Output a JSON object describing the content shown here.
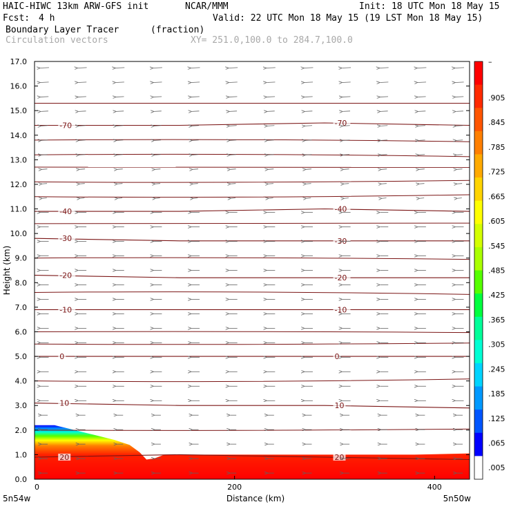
{
  "header": {
    "title": "HAIC-HIWC 13km ARW-GFS init",
    "org": "NCAR/MMM",
    "init": "Init: 18 UTC Mon 18 May 15",
    "fcst_label": "Fcst:",
    "fcst_value": "4 h",
    "valid": "Valid: 22 UTC Mon 18 May 15 (19 LST Mon 18 May 15)",
    "field_name": "Boundary Layer Tracer",
    "field_units": "(fraction)",
    "vector_label": "Circulation vectors",
    "xy_label": "XY= 251.0,100.0 to 284.7,100.0"
  },
  "chart_data": {
    "type": "heatmap",
    "title": "Boundary Layer Tracer (fraction)",
    "xlabel": "Distance (km)",
    "ylabel": "Height (km)",
    "xlim": [
      0,
      435
    ],
    "ylim": [
      0,
      17
    ],
    "x_ticks": [
      "0",
      "200",
      "400"
    ],
    "x_tick_values": [
      0,
      200,
      400
    ],
    "x_end_labels": [
      "5n54w",
      "5n50w"
    ],
    "y_ticks": [
      "0.0",
      "1.0",
      "2.0",
      "3.0",
      "4.0",
      "5.0",
      "6.0",
      "7.0",
      "8.0",
      "9.0",
      "10.0",
      "11.0",
      "12.0",
      "13.0",
      "14.0",
      "15.0",
      "16.0",
      "17.0"
    ],
    "y_tick_values": [
      0,
      1,
      2,
      3,
      4,
      5,
      6,
      7,
      8,
      9,
      10,
      11,
      12,
      13,
      14,
      15,
      16,
      17
    ],
    "colorbar": {
      "labels": [
        "–",
        ".905",
        ".845",
        ".785",
        ".725",
        ".665",
        ".605",
        ".545",
        ".485",
        ".425",
        ".365",
        ".305",
        ".245",
        ".185",
        ".125",
        ".065",
        ".005"
      ],
      "colors": [
        "#ff0000",
        "#ff2a00",
        "#ff5500",
        "#ff7f00",
        "#ffaa00",
        "#ffd400",
        "#ffff00",
        "#d4ff00",
        "#aaff00",
        "#55ff00",
        "#00ff3f",
        "#00ff99",
        "#00ffd4",
        "#00d4ff",
        "#0099ff",
        "#0055ff",
        "#0000ff",
        "#ffffff"
      ]
    },
    "tracer_top": [
      [
        0,
        2.2
      ],
      [
        20,
        2.2
      ],
      [
        40,
        2.0
      ],
      [
        60,
        1.8
      ],
      [
        80,
        1.6
      ],
      [
        95,
        1.4
      ],
      [
        105,
        1.1
      ],
      [
        112,
        0.8
      ],
      [
        120,
        0.85
      ],
      [
        130,
        1.0
      ],
      [
        160,
        1.0
      ],
      [
        200,
        1.0
      ],
      [
        260,
        1.0
      ],
      [
        320,
        1.0
      ],
      [
        380,
        1.0
      ],
      [
        435,
        1.05
      ]
    ],
    "temperature_contours": [
      {
        "value": -70,
        "label": "-70",
        "heights": [
          14.4,
          14.4,
          14.5,
          14.4
        ]
      },
      {
        "value": -40,
        "label": "-40",
        "heights": [
          10.9,
          10.9,
          11.0,
          10.9
        ]
      },
      {
        "value": -30,
        "label": "-30",
        "heights": [
          9.8,
          9.7,
          9.7,
          9.7
        ]
      },
      {
        "value": -20,
        "label": "-20",
        "heights": [
          8.3,
          8.2,
          8.2,
          8.2
        ]
      },
      {
        "value": -10,
        "label": "-10",
        "heights": [
          6.9,
          6.9,
          6.9,
          6.9
        ]
      },
      {
        "value": 0,
        "label": "0",
        "heights": [
          5.0,
          5.0,
          5.0,
          5.0
        ]
      },
      {
        "value": 10,
        "label": "10",
        "heights": [
          3.1,
          3.0,
          3.0,
          2.9
        ]
      },
      {
        "value": 20,
        "label": "20",
        "heights": [
          0.9,
          1.0,
          0.9,
          0.8
        ]
      }
    ],
    "background_contour_heights": [
      15.3,
      13.8,
      13.2,
      12.7,
      12.1,
      11.5,
      10.4,
      9.0,
      7.6,
      6.0,
      5.5,
      4.0,
      2.0
    ],
    "vector_field": {
      "description_none": "",
      "rows": 29,
      "cols": 12
    }
  }
}
